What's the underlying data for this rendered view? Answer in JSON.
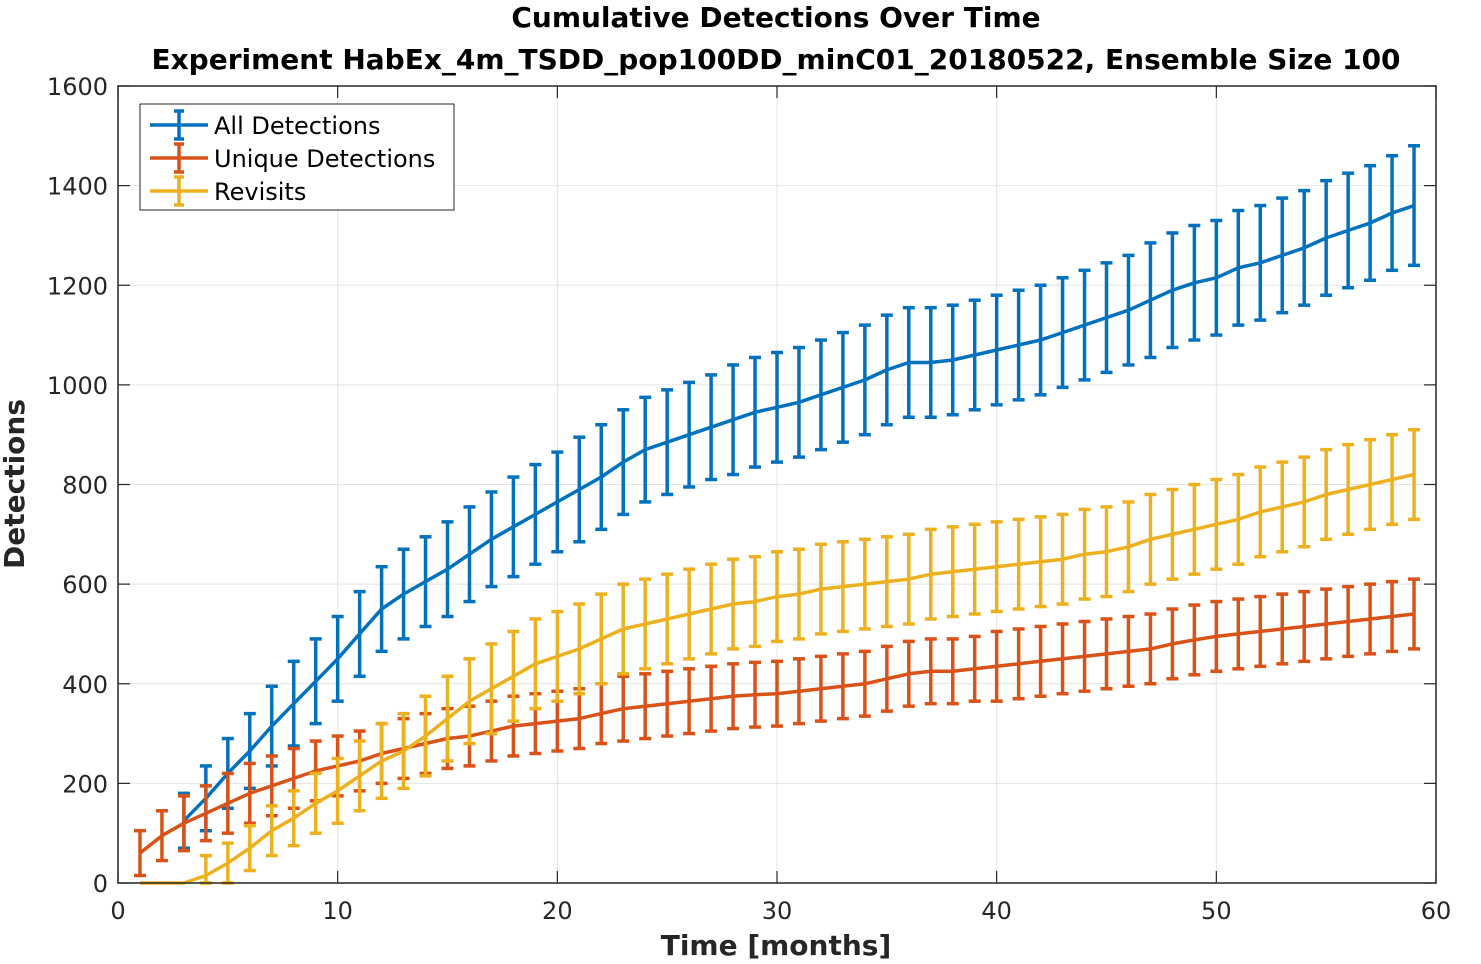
{
  "chart_data": {
    "type": "line",
    "title": "Cumulative Detections Over Time",
    "subtitle": "Experiment HabEx_4m_TSDD_pop100DD_minC01_20180522, Ensemble Size 100",
    "xlabel": "Time [months]",
    "ylabel": "Detections",
    "xlim": [
      0,
      60
    ],
    "ylim": [
      0,
      1600
    ],
    "xticks": [
      0,
      10,
      20,
      30,
      40,
      50,
      60
    ],
    "yticks": [
      0,
      200,
      400,
      600,
      800,
      1000,
      1200,
      1400,
      1600
    ],
    "grid": true,
    "legend_position": "top-left",
    "error_bars": true,
    "x": [
      1,
      2,
      3,
      4,
      5,
      6,
      7,
      8,
      9,
      10,
      11,
      12,
      13,
      14,
      15,
      16,
      17,
      18,
      19,
      20,
      21,
      22,
      23,
      24,
      25,
      26,
      27,
      28,
      29,
      30,
      31,
      32,
      33,
      34,
      35,
      36,
      37,
      38,
      39,
      40,
      41,
      42,
      43,
      44,
      45,
      46,
      47,
      48,
      49,
      50,
      51,
      52,
      53,
      54,
      55,
      56,
      57,
      58,
      59
    ],
    "series": [
      {
        "name": "All Detections",
        "color": "#0072BD",
        "start_index": 2,
        "values": [
          null,
          null,
          125,
          170,
          220,
          265,
          315,
          360,
          405,
          450,
          500,
          550,
          580,
          605,
          630,
          660,
          690,
          715,
          740,
          765,
          790,
          815,
          845,
          870,
          885,
          900,
          915,
          930,
          945,
          955,
          965,
          980,
          995,
          1010,
          1030,
          1045,
          1045,
          1050,
          1060,
          1070,
          1080,
          1090,
          1105,
          1120,
          1135,
          1150,
          1170,
          1190,
          1205,
          1215,
          1235,
          1245,
          1260,
          1275,
          1295,
          1310,
          1325,
          1345,
          1360
        ],
        "errors": [
          null,
          null,
          55,
          65,
          70,
          75,
          80,
          85,
          85,
          85,
          85,
          85,
          90,
          90,
          95,
          95,
          95,
          100,
          100,
          100,
          105,
          105,
          105,
          105,
          105,
          105,
          105,
          110,
          110,
          110,
          110,
          110,
          110,
          110,
          110,
          110,
          110,
          110,
          110,
          110,
          110,
          110,
          110,
          110,
          110,
          110,
          115,
          115,
          115,
          115,
          115,
          115,
          115,
          115,
          115,
          115,
          115,
          115,
          120
        ]
      },
      {
        "name": "Unique Detections",
        "color": "#D95319",
        "start_index": 0,
        "values": [
          60,
          95,
          120,
          140,
          160,
          180,
          195,
          210,
          225,
          235,
          245,
          260,
          270,
          280,
          290,
          295,
          305,
          315,
          320,
          325,
          330,
          340,
          350,
          355,
          360,
          365,
          370,
          375,
          378,
          380,
          385,
          390,
          395,
          400,
          410,
          420,
          425,
          425,
          430,
          435,
          440,
          445,
          450,
          455,
          460,
          465,
          470,
          480,
          488,
          495,
          500,
          505,
          510,
          515,
          520,
          525,
          530,
          535,
          540
        ],
        "errors": [
          45,
          50,
          55,
          55,
          60,
          60,
          60,
          60,
          60,
          60,
          60,
          60,
          60,
          60,
          60,
          60,
          60,
          60,
          60,
          60,
          60,
          60,
          65,
          65,
          65,
          65,
          65,
          65,
          65,
          65,
          65,
          65,
          65,
          65,
          65,
          65,
          65,
          65,
          65,
          70,
          70,
          70,
          70,
          70,
          70,
          70,
          70,
          70,
          70,
          70,
          70,
          70,
          70,
          70,
          70,
          70,
          70,
          70,
          70
        ]
      },
      {
        "name": "Revisits",
        "color": "#EDB120",
        "start_index": 0,
        "values": [
          0,
          0,
          0,
          15,
          40,
          70,
          105,
          130,
          160,
          185,
          215,
          245,
          265,
          295,
          330,
          365,
          390,
          415,
          440,
          455,
          470,
          490,
          510,
          520,
          530,
          540,
          550,
          560,
          565,
          575,
          580,
          590,
          595,
          600,
          605,
          610,
          620,
          625,
          630,
          635,
          640,
          645,
          650,
          660,
          665,
          675,
          690,
          700,
          710,
          720,
          730,
          745,
          755,
          765,
          780,
          790,
          800,
          810,
          820
        ],
        "errors": [
          0,
          0,
          0,
          40,
          40,
          45,
          50,
          55,
          60,
          65,
          70,
          75,
          75,
          80,
          85,
          85,
          90,
          90,
          90,
          90,
          90,
          90,
          90,
          90,
          90,
          90,
          90,
          90,
          90,
          90,
          90,
          90,
          90,
          90,
          90,
          90,
          90,
          90,
          90,
          90,
          90,
          90,
          90,
          90,
          90,
          90,
          90,
          90,
          90,
          90,
          90,
          90,
          90,
          90,
          90,
          90,
          90,
          90,
          90
        ]
      }
    ]
  }
}
